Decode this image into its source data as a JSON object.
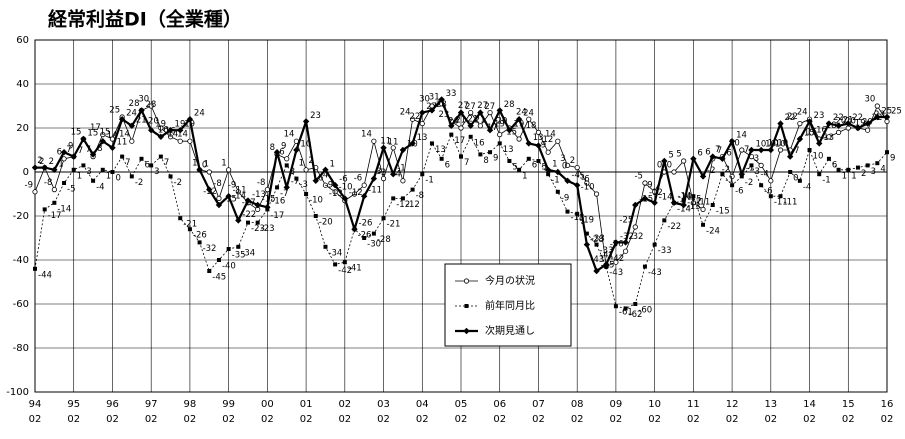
{
  "chart_data": {
    "type": "line",
    "title": "経常利益DI（全業種）",
    "categories": [
      "94",
      null,
      null,
      null,
      "95",
      null,
      null,
      null,
      "96",
      null,
      null,
      null,
      "97",
      null,
      null,
      null,
      "98",
      null,
      null,
      null,
      "99",
      null,
      null,
      null,
      "00",
      null,
      null,
      null,
      "01",
      null,
      null,
      null,
      "02",
      null,
      null,
      null,
      "03",
      null,
      null,
      null,
      "04",
      null,
      null,
      null,
      "05",
      null,
      null,
      null,
      "06",
      null,
      null,
      null,
      "07",
      null,
      null,
      null,
      "08",
      null,
      null,
      null,
      "09",
      null,
      null,
      null,
      "10",
      null,
      null,
      null,
      "11",
      null,
      null,
      null,
      "12",
      null,
      null,
      null,
      "13",
      null,
      null,
      null,
      "14",
      null,
      null,
      null,
      "15",
      null,
      null,
      null,
      "16"
    ],
    "x_sublabel": "02",
    "series": [
      {
        "name": "今月の状況",
        "color": "#000000",
        "marker": "open-circle",
        "values": [
          -9,
          2,
          -8,
          6,
          7,
          15,
          7,
          17,
          15,
          25,
          14,
          28,
          30,
          20,
          16,
          14,
          14,
          1,
          0,
          -12,
          1,
          -9,
          -14,
          -17,
          -8,
          8,
          6,
          14,
          1,
          2,
          -6,
          -9,
          -13,
          -10,
          -6,
          14,
          -3,
          11,
          -4,
          24,
          22,
          30,
          31,
          23,
          20,
          27,
          21,
          27,
          17,
          20,
          15,
          24,
          18,
          9,
          14,
          3,
          2,
          -5,
          -10,
          -43,
          -41,
          -36,
          -25,
          -5,
          -9,
          0,
          0,
          5,
          -14,
          -17,
          6,
          7,
          -2,
          10,
          7,
          3,
          -4,
          10,
          10,
          22,
          24,
          15,
          16,
          18,
          20,
          20,
          19,
          30,
          23
        ]
      },
      {
        "name": "前年同月比",
        "color": "#000000",
        "marker": "square",
        "values": [
          -44,
          -17,
          -14,
          -5,
          1,
          3,
          -4,
          1,
          0,
          7,
          -2,
          6,
          3,
          7,
          -2,
          -21,
          -26,
          -32,
          -45,
          -40,
          -35,
          -34,
          -23,
          -23,
          -17,
          -7,
          3,
          -3,
          -10,
          -20,
          -34,
          -42,
          -41,
          -26,
          -30,
          -28,
          -21,
          -12,
          -12,
          -8,
          -1,
          13,
          6,
          17,
          7,
          16,
          8,
          9,
          13,
          5,
          1,
          6,
          5,
          -1,
          -9,
          -18,
          -19,
          -28,
          -33,
          -43,
          -61,
          -62,
          -60,
          -43,
          -33,
          -22,
          -14,
          -13,
          -11,
          -24,
          -15,
          -1,
          -6,
          -2,
          3,
          -6,
          -11,
          -11,
          0,
          -4,
          10,
          -1,
          6,
          1,
          1,
          2,
          3,
          4,
          9
        ]
      },
      {
        "name": "次期見通し",
        "color": "#000000",
        "marker": "diamond",
        "values": [
          2,
          2,
          1,
          9,
          7,
          15,
          8,
          14,
          11,
          24,
          21,
          28,
          19,
          16,
          19,
          19,
          24,
          1,
          -8,
          -15,
          -11,
          -22,
          -13,
          -15,
          -16,
          9,
          -7,
          10,
          23,
          -4,
          1,
          -6,
          -12,
          -26,
          -11,
          -3,
          11,
          -1,
          10,
          13,
          27,
          28,
          33,
          21,
          27,
          21,
          27,
          19,
          28,
          19,
          24,
          13,
          12,
          1,
          0,
          -4,
          -6,
          -33,
          -45,
          -42,
          -32,
          -32,
          -15,
          -12,
          -14,
          5,
          -14,
          -15,
          6,
          -2,
          7,
          6,
          14,
          -1,
          10,
          10,
          10,
          22,
          7,
          15,
          23,
          13,
          22,
          21,
          22,
          20,
          22,
          25,
          25
        ]
      }
    ],
    "ylim": [
      -100,
      60
    ],
    "yticks": [
      -100,
      -80,
      -60,
      -40,
      -20,
      0,
      20,
      40,
      60
    ],
    "grid": true
  }
}
